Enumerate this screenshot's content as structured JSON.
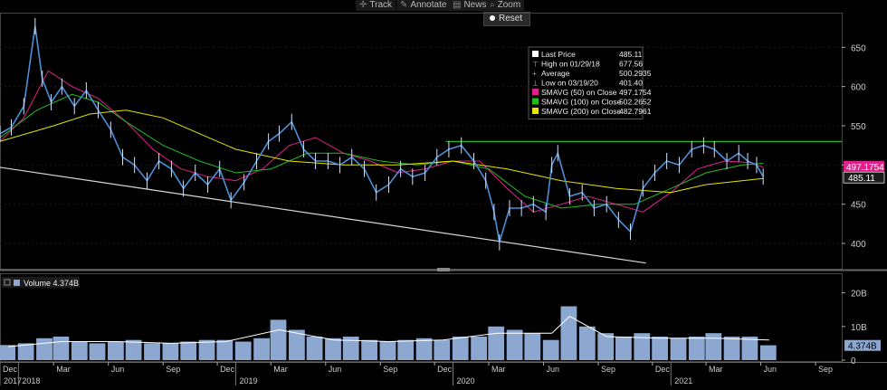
{
  "toolbar": {
    "track": "Track",
    "annotate": "Annotate",
    "news": "News",
    "zoom": "Zoom",
    "reset": "Reset"
  },
  "legend": {
    "rows": [
      {
        "label": "Last Price",
        "value": "485.11",
        "color": "#ffffff"
      },
      {
        "label": "High on 01/29/18",
        "value": "677.56",
        "color": ""
      },
      {
        "label": "Average",
        "value": "500.2935",
        "color": ""
      },
      {
        "label": "Low on 03/19/20",
        "value": "401.40",
        "color": ""
      },
      {
        "label": "SMAVG (50)  on Close",
        "value": "497.1754",
        "color": "#e0218a"
      },
      {
        "label": "SMAVG (100)  on Close",
        "value": "502.2652",
        "color": "#22bb22"
      },
      {
        "label": "SMAVG (200)  on Close",
        "value": "482.7961",
        "color": "#e6e600"
      }
    ]
  },
  "volume_panel": {
    "label": "Volume 4.374B",
    "last_value_tag": "4.374B"
  },
  "colors": {
    "price": "#4d8fd6",
    "sma50": "#e0218a",
    "sma100": "#22bb22",
    "sma200": "#e6e600",
    "resistance": "#22cc22",
    "trendline": "#d8d8d8",
    "volume_bars": "#8da8d0",
    "volume_avg": "#ffffff"
  },
  "chart_data": [
    {
      "type": "line",
      "title": "",
      "yaxis_ticks": [
        400,
        450,
        500,
        550,
        600,
        650
      ],
      "ylim": [
        370,
        685
      ],
      "x_month_labels": [
        "Dec",
        "Mar",
        "Jun",
        "Sep",
        "Dec",
        "Mar",
        "Jun",
        "Sep",
        "Dec",
        "Mar",
        "Jun",
        "Sep",
        "Dec",
        "Mar",
        "Jun",
        "Sep"
      ],
      "x_year_labels": [
        "2017",
        "2018",
        "2019",
        "2020",
        "2021"
      ],
      "x_range": [
        "2017-12-01",
        "2021-10-15"
      ],
      "last_price_tag": "485.11",
      "sma50_tag": "497.1754",
      "series": [
        {
          "name": "Last Price",
          "type": "line",
          "x": [
            "2017-12-01",
            "2017-12-20",
            "2018-01-10",
            "2018-01-29",
            "2018-02-10",
            "2018-02-25",
            "2018-03-15",
            "2018-04-05",
            "2018-04-25",
            "2018-05-15",
            "2018-06-05",
            "2018-06-25",
            "2018-07-15",
            "2018-08-05",
            "2018-08-25",
            "2018-09-15",
            "2018-10-05",
            "2018-10-25",
            "2018-11-15",
            "2018-12-05",
            "2018-12-24",
            "2019-01-15",
            "2019-02-05",
            "2019-02-25",
            "2019-03-15",
            "2019-04-05",
            "2019-04-25",
            "2019-05-15",
            "2019-06-05",
            "2019-06-25",
            "2019-07-15",
            "2019-08-05",
            "2019-08-25",
            "2019-09-15",
            "2019-10-05",
            "2019-10-25",
            "2019-11-15",
            "2019-12-05",
            "2019-12-25",
            "2020-01-15",
            "2020-02-05",
            "2020-02-25",
            "2020-03-10",
            "2020-03-19",
            "2020-04-05",
            "2020-04-25",
            "2020-05-15",
            "2020-06-05",
            "2020-06-15",
            "2020-06-25",
            "2020-07-15",
            "2020-08-05",
            "2020-08-25",
            "2020-09-15",
            "2020-10-05",
            "2020-10-25",
            "2020-11-15",
            "2020-12-05",
            "2020-12-25",
            "2021-01-15",
            "2021-02-05",
            "2021-02-25",
            "2021-03-15",
            "2021-04-05",
            "2021-04-25",
            "2021-05-10",
            "2021-05-25",
            "2021-06-05"
          ],
          "y": [
            540,
            548,
            575,
            677,
            610,
            580,
            600,
            575,
            595,
            570,
            545,
            510,
            500,
            480,
            505,
            495,
            470,
            490,
            475,
            495,
            455,
            478,
            505,
            530,
            540,
            555,
            520,
            505,
            505,
            500,
            510,
            495,
            465,
            475,
            495,
            485,
            490,
            510,
            520,
            525,
            505,
            480,
            440,
            401.4,
            445,
            445,
            450,
            440,
            500,
            515,
            460,
            465,
            445,
            450,
            430,
            415,
            470,
            490,
            505,
            500,
            520,
            525,
            520,
            505,
            515,
            505,
            500,
            485.11
          ]
        },
        {
          "name": "SMAVG (50)  on Close",
          "type": "line",
          "x": [
            "2017-12-01",
            "2018-01-10",
            "2018-02-20",
            "2018-04-01",
            "2018-05-15",
            "2018-07-01",
            "2018-08-15",
            "2018-10-01",
            "2018-11-15",
            "2019-01-01",
            "2019-02-15",
            "2019-04-01",
            "2019-05-15",
            "2019-07-01",
            "2019-08-15",
            "2019-10-01",
            "2019-11-15",
            "2020-01-01",
            "2020-02-15",
            "2020-04-01",
            "2020-05-15",
            "2020-07-01",
            "2020-08-15",
            "2020-10-01",
            "2020-11-15",
            "2021-01-01",
            "2021-02-15",
            "2021-04-01",
            "2021-05-15",
            "2021-06-05"
          ],
          "y": [
            530,
            560,
            620,
            600,
            585,
            555,
            520,
            495,
            485,
            480,
            495,
            525,
            535,
            515,
            505,
            490,
            495,
            505,
            505,
            470,
            440,
            450,
            460,
            450,
            440,
            465,
            495,
            505,
            503,
            497.18
          ]
        },
        {
          "name": "SMAVG (100)  on Close",
          "type": "line",
          "x": [
            "2017-12-01",
            "2018-02-01",
            "2018-04-01",
            "2018-05-15",
            "2018-07-01",
            "2018-09-01",
            "2018-11-01",
            "2019-01-01",
            "2019-03-01",
            "2019-05-01",
            "2019-07-01",
            "2019-09-01",
            "2019-11-01",
            "2020-01-01",
            "2020-03-01",
            "2020-05-01",
            "2020-07-01",
            "2020-09-01",
            "2020-11-01",
            "2021-01-01",
            "2021-03-01",
            "2021-05-01",
            "2021-06-05"
          ],
          "y": [
            535,
            570,
            590,
            580,
            555,
            525,
            505,
            490,
            495,
            515,
            515,
            505,
            500,
            505,
            495,
            460,
            445,
            450,
            450,
            470,
            490,
            500,
            502.27
          ]
        },
        {
          "name": "SMAVG (200)  on Close",
          "type": "line",
          "x": [
            "2017-12-01",
            "2018-03-01",
            "2018-05-01",
            "2018-07-01",
            "2018-09-01",
            "2018-11-01",
            "2019-01-01",
            "2019-04-01",
            "2019-07-01",
            "2019-10-01",
            "2020-01-01",
            "2020-04-01",
            "2020-07-01",
            "2020-10-01",
            "2021-01-01",
            "2021-03-01",
            "2021-06-05"
          ],
          "y": [
            530,
            550,
            565,
            570,
            560,
            540,
            520,
            505,
            500,
            500,
            505,
            495,
            480,
            470,
            465,
            475,
            482.8
          ]
        }
      ],
      "reference_lines": [
        {
          "type": "horizontal",
          "y": 530,
          "x_start": "2019-12-20",
          "x_end": "2021-10-15"
        },
        {
          "type": "trend",
          "from": {
            "x": "2017-12-01",
            "y": 497
          },
          "to": {
            "x": "2020-11-20",
            "y": 375
          }
        }
      ]
    },
    {
      "type": "bar",
      "title": "",
      "yaxis_ticks": [
        "0",
        "10B",
        "20B"
      ],
      "ylim": [
        0,
        25
      ],
      "value_unit": "billions",
      "last_value": 4.374,
      "series": [
        {
          "name": "Volume",
          "type": "bar",
          "x": [
            "2017-12",
            "2018-01",
            "2018-02",
            "2018-03",
            "2018-04",
            "2018-05",
            "2018-06",
            "2018-07",
            "2018-08",
            "2018-09",
            "2018-10",
            "2018-11",
            "2018-12",
            "2019-01",
            "2019-02",
            "2019-03",
            "2019-04",
            "2019-05",
            "2019-06",
            "2019-07",
            "2019-08",
            "2019-09",
            "2019-10",
            "2019-11",
            "2019-12",
            "2020-01",
            "2020-02",
            "2020-03",
            "2020-04",
            "2020-05",
            "2020-06",
            "2020-07",
            "2020-08",
            "2020-09",
            "2020-10",
            "2020-11",
            "2020-12",
            "2021-01",
            "2021-02",
            "2021-03",
            "2021-04",
            "2021-05",
            "2021-06"
          ],
          "values": [
            4.5,
            5,
            6.5,
            7,
            5.5,
            5,
            5.5,
            6,
            5,
            5,
            5.5,
            6,
            6,
            5.5,
            6.5,
            12,
            9,
            7,
            6.5,
            7,
            6,
            5.5,
            6,
            6.5,
            6,
            7,
            7,
            10,
            9,
            8,
            6,
            16,
            10,
            8,
            7,
            8,
            7,
            6.5,
            7,
            8,
            7,
            7,
            4.4
          ]
        },
        {
          "name": "Volume average",
          "type": "line",
          "x": [
            "2017-12",
            "2018-03",
            "2018-06",
            "2018-09",
            "2018-12",
            "2019-03",
            "2019-06",
            "2019-09",
            "2019-12",
            "2020-03",
            "2020-06",
            "2020-07",
            "2020-09",
            "2020-12",
            "2021-03",
            "2021-06"
          ],
          "values": [
            4,
            5.5,
            5.5,
            5,
            5.5,
            9,
            6,
            5.5,
            6,
            8,
            8,
            13,
            7,
            6.5,
            6.5,
            6
          ]
        }
      ]
    }
  ]
}
